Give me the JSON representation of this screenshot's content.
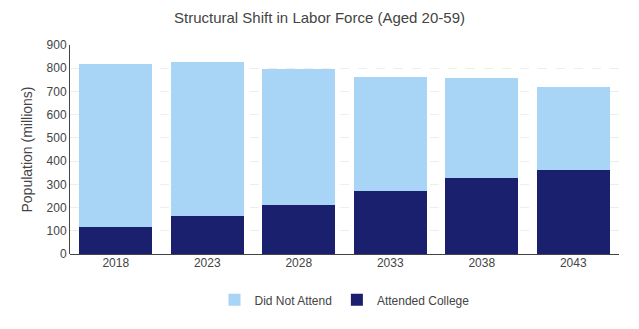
{
  "chart_data": {
    "type": "bar",
    "stacked": true,
    "title": "Structural Shift in Labor Force (Aged 20-59)",
    "ylabel": "Population (millions)",
    "categories": [
      "2018",
      "2023",
      "2028",
      "2033",
      "2038",
      "2043"
    ],
    "series": [
      {
        "name": "Attended College",
        "color": "#1a1f6e",
        "values": [
          115,
          162,
          210,
          270,
          328,
          360
        ]
      },
      {
        "name": "Did Not Attend",
        "color": "#a8d4f5",
        "values": [
          705,
          666,
          586,
          493,
          429,
          358
        ]
      }
    ],
    "ylim": [
      0,
      900
    ],
    "yticks": [
      0,
      100,
      200,
      300,
      400,
      500,
      600,
      700,
      800,
      900
    ],
    "grid": true,
    "legend": "bottom"
  }
}
